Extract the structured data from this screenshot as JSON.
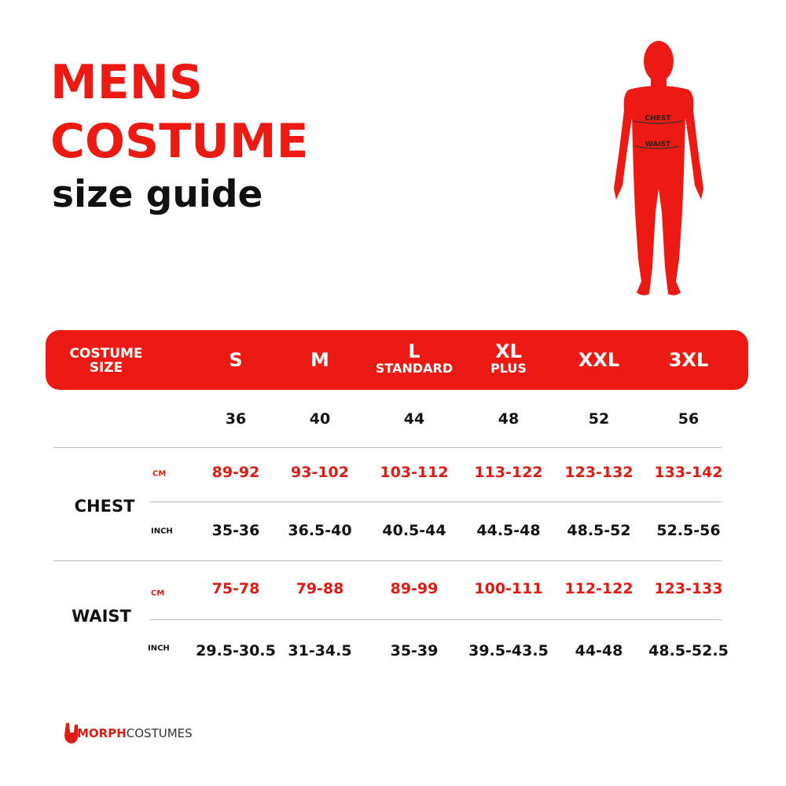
{
  "title": {
    "line1": "MENS",
    "line2": "COSTUME",
    "line3": "size guide"
  },
  "figure": {
    "chest_label": "CHEST",
    "waist_label": "WAIST",
    "color": "#ec1a12"
  },
  "header": {
    "label_line1": "COSTUME",
    "label_line2": "SIZE",
    "sizes": [
      {
        "size": "S",
        "sub": ""
      },
      {
        "size": "M",
        "sub": ""
      },
      {
        "size": "L",
        "sub": "STANDARD"
      },
      {
        "size": "XL",
        "sub": "PLUS"
      },
      {
        "size": "XXL",
        "sub": ""
      },
      {
        "size": "3XL",
        "sub": ""
      }
    ]
  },
  "numbers": [
    "36",
    "40",
    "44",
    "48",
    "52",
    "56"
  ],
  "rows": [
    {
      "label": "CHEST",
      "cm_unit": "CM",
      "inch_unit": "INCH",
      "cm": [
        "89-92",
        "93-102",
        "103-112",
        "113-122",
        "123-132",
        "133-142"
      ],
      "inch": [
        "35-36",
        "36.5-40",
        "40.5-44",
        "44.5-48",
        "48.5-52",
        "52.5-56"
      ]
    },
    {
      "label": "WAIST",
      "cm_unit": "CM",
      "inch_unit": "INCH",
      "cm": [
        "75-78",
        "79-88",
        "89-99",
        "100-111",
        "112-122",
        "123-133"
      ],
      "inch": [
        "29.5-30.5",
        "31-34.5",
        "35-39",
        "39.5-43.5",
        "44-48",
        "48.5-52.5"
      ]
    }
  ],
  "logo": {
    "text_red": "MORPH",
    "text_dark": "COSTUMES"
  },
  "colors": {
    "accent": "#ec1a12",
    "text": "#111111"
  }
}
